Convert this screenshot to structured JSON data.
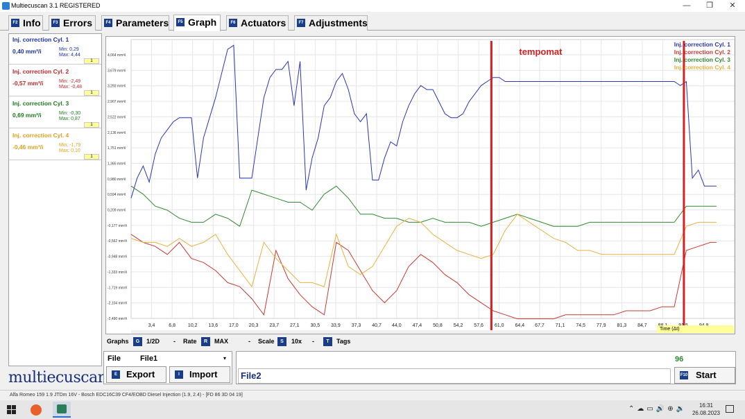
{
  "window": {
    "title": "Multiecuscan 3.1 REGISTERED",
    "minimize": "—",
    "maximize": "❐",
    "close": "✕"
  },
  "tabs": [
    {
      "key": "F2",
      "label": "Info"
    },
    {
      "key": "F3",
      "label": "Errors"
    },
    {
      "key": "F4",
      "label": "Parameters"
    },
    {
      "key": "F5",
      "label": "Graph"
    },
    {
      "key": "F6",
      "label": "Actuators"
    },
    {
      "key": "F7",
      "label": "Adjustments"
    }
  ],
  "params": [
    {
      "title": "Inj. correction Cyl. 1",
      "value": "0,40 mm³/i",
      "min": "Min: 0,29",
      "max": "Max: 4,44",
      "color": "#1c2fa8",
      "dd": "1"
    },
    {
      "title": "Inj. correction Cyl. 2",
      "value": "-0,57 mm³/i",
      "min": "Min: -2,49",
      "max": "Max: -0,48",
      "color": "#c0282a",
      "dd": "1"
    },
    {
      "title": "Inj. correction Cyl. 3",
      "value": "0,69 mm³/i",
      "min": "Min: -0,30",
      "max": "Max: 0,87",
      "color": "#1f7a1f",
      "dd": "1"
    },
    {
      "title": "Inj. correction Cyl. 4",
      "value": "-0,46 mm³/i",
      "min": "Min: -1,79",
      "max": "Max: 0,10",
      "color": "#e0a020",
      "dd": "1"
    }
  ],
  "brand": "multiecuscan",
  "colors": {
    "cyl1": "#2a35b8",
    "cyl2": "#c83a32",
    "cyl3": "#2f8a2f",
    "cyl4": "#e8b040",
    "marker": "#d42020"
  },
  "chart_data": {
    "type": "line",
    "title": "",
    "annotation": "tempomat",
    "ylim": [
      -2.49,
      4.444
    ],
    "xlim": [
      0,
      100
    ],
    "y_ticks": [
      "4,064 mm³/i",
      "3,679 mm³/i",
      "3,293 mm³/i",
      "2,907 mm³/i",
      "2,522 mm³/i",
      "2,136 mm³/i",
      "1,751 mm³/i",
      "1,365 mm³/i",
      "0,980 mm³/i",
      "0,594 mm³/i",
      "0,209 mm³/i",
      "-0,177 mm³/i",
      "-0,562 mm³/i",
      "-0,948 mm³/i",
      "-1,333 mm³/i",
      "-1,719 mm³/i",
      "-2,104 mm³/i",
      "-2,490 mm³/i"
    ],
    "y_tick_values": [
      4.064,
      3.679,
      3.293,
      2.907,
      2.522,
      2.136,
      1.751,
      1.365,
      0.98,
      0.594,
      0.209,
      -0.177,
      -0.562,
      -0.948,
      -1.333,
      -1.719,
      -2.104,
      -2.49
    ],
    "x_ticks": [
      "3,4",
      "6,8",
      "10,2",
      "13,6",
      "17,0",
      "20,3",
      "23,7",
      "27,1",
      "30,5",
      "33,9",
      "37,3",
      "40,7",
      "44,0",
      "47,4",
      "50,8",
      "54,2",
      "57,6",
      "61,0",
      "64,4",
      "67,7",
      "71,1",
      "74,5",
      "77,9",
      "81,3",
      "84,7",
      "88,1",
      "91,5",
      "94,9"
    ],
    "x_tick_values": [
      3.4,
      6.8,
      10.2,
      13.6,
      17.0,
      20.3,
      23.7,
      27.1,
      30.5,
      33.9,
      37.3,
      40.7,
      44.0,
      47.4,
      50.8,
      54.2,
      57.6,
      61.0,
      64.4,
      67.7,
      71.1,
      74.5,
      77.9,
      81.3,
      84.7,
      88.1,
      91.5,
      94.9
    ],
    "vertical_markers": [
      59.7,
      91.6
    ],
    "legend_position": "top-right",
    "x_axis_selector": "Time (Δt)",
    "series": [
      {
        "name": "Inj. correction Cyl. 1",
        "color": "#2a35b8",
        "x": [
          0,
          1,
          2,
          3,
          4,
          5,
          6,
          7,
          8,
          9,
          10,
          11,
          12,
          13,
          14,
          15,
          16,
          17,
          18,
          19,
          20,
          21,
          22,
          23,
          24,
          25,
          26,
          27,
          28,
          29,
          30,
          31,
          32,
          33,
          34,
          35,
          36,
          37,
          38,
          39,
          40,
          41,
          42,
          43,
          44,
          45,
          46,
          47,
          48,
          49,
          50,
          51,
          52,
          53,
          54,
          55,
          56,
          57,
          58,
          59,
          60,
          61,
          62,
          63,
          64,
          65,
          66,
          67,
          68,
          69,
          70,
          71,
          72,
          73,
          74,
          75,
          76,
          77,
          78,
          79,
          80,
          81,
          82,
          83,
          84,
          85,
          86,
          87,
          88,
          89,
          90,
          91,
          92,
          93,
          94,
          95,
          96,
          97
        ],
        "y": [
          0.5,
          1.0,
          1.3,
          0.9,
          1.6,
          2.0,
          2.2,
          2.4,
          2.5,
          2.5,
          2.5,
          1.0,
          2.0,
          2.5,
          3.0,
          3.6,
          4.2,
          4.3,
          1.0,
          1.0,
          1.0,
          2.0,
          3.0,
          3.5,
          3.7,
          3.7,
          3.9,
          2.8,
          3.9,
          0.7,
          1.5,
          2.0,
          2.8,
          3.0,
          3.4,
          3.6,
          3.2,
          2.6,
          2.4,
          2.6,
          0.95,
          0.95,
          1.5,
          1.9,
          1.8,
          2.4,
          2.8,
          3.1,
          3.3,
          3.2,
          3.2,
          2.9,
          2.6,
          2.5,
          2.5,
          2.6,
          2.9,
          3.1,
          3.3,
          3.4,
          3.5,
          3.5,
          3.4,
          3.4,
          3.4,
          3.4,
          3.4,
          3.4,
          3.4,
          3.4,
          3.4,
          3.4,
          3.4,
          3.4,
          3.4,
          3.4,
          3.4,
          3.4,
          3.4,
          3.4,
          3.4,
          3.4,
          3.4,
          3.4,
          3.4,
          3.4,
          3.4,
          3.4,
          3.4,
          3.4,
          3.4,
          3.3,
          3.4,
          1.0,
          1.2,
          0.8,
          0.8,
          0.8
        ]
      },
      {
        "name": "Inj. correction Cyl. 2",
        "color": "#c83a32",
        "x": [
          0,
          2,
          4,
          6,
          8,
          10,
          12,
          14,
          16,
          18,
          20,
          22,
          24,
          26,
          28,
          30,
          32,
          34,
          36,
          38,
          40,
          42,
          44,
          46,
          48,
          50,
          52,
          54,
          56,
          58,
          60,
          62,
          64,
          66,
          68,
          70,
          72,
          74,
          76,
          78,
          80,
          82,
          84,
          86,
          88,
          90,
          92,
          94,
          96,
          97
        ],
        "y": [
          -0.4,
          -0.6,
          -0.7,
          -0.9,
          -0.6,
          -1.0,
          -1.1,
          -1.3,
          -1.6,
          -1.7,
          -2.0,
          -2.4,
          -0.8,
          -1.5,
          -1.9,
          -2.2,
          -2.4,
          -0.6,
          -0.8,
          -1.3,
          -1.8,
          -2.1,
          -1.8,
          -1.2,
          -0.9,
          -1.1,
          -1.4,
          -1.6,
          -1.9,
          -2.1,
          -2.3,
          -2.4,
          -2.5,
          -2.5,
          -2.5,
          -2.5,
          -2.4,
          -2.4,
          -2.4,
          -2.4,
          -2.4,
          -2.3,
          -2.3,
          -2.3,
          -2.2,
          -2.2,
          -0.8,
          -0.7,
          -0.6,
          -0.6
        ]
      },
      {
        "name": "Inj. correction Cyl. 3",
        "color": "#2f8a2f",
        "x": [
          0,
          2,
          4,
          6,
          8,
          10,
          12,
          14,
          16,
          18,
          20,
          22,
          24,
          26,
          28,
          30,
          32,
          34,
          36,
          38,
          40,
          42,
          44,
          46,
          48,
          50,
          52,
          54,
          56,
          58,
          60,
          62,
          64,
          66,
          68,
          70,
          72,
          74,
          76,
          78,
          80,
          82,
          84,
          86,
          88,
          90,
          92,
          94,
          96,
          97
        ],
        "y": [
          0.8,
          0.6,
          0.3,
          0.2,
          0.0,
          -0.1,
          -0.1,
          0.1,
          0.0,
          -0.2,
          0.7,
          0.6,
          0.5,
          0.4,
          0.4,
          0.2,
          0.6,
          0.8,
          0.5,
          0.1,
          0.1,
          0.0,
          0.0,
          -0.1,
          -0.1,
          0.0,
          -0.1,
          -0.1,
          -0.1,
          -0.2,
          -0.1,
          0.0,
          0.1,
          0.0,
          -0.1,
          -0.2,
          -0.2,
          -0.2,
          -0.1,
          -0.1,
          -0.1,
          -0.1,
          -0.1,
          -0.1,
          -0.1,
          -0.1,
          0.3,
          0.3,
          0.3,
          0.3
        ]
      },
      {
        "name": "Inj. correction Cyl. 4",
        "color": "#e8b040",
        "x": [
          0,
          2,
          4,
          6,
          8,
          10,
          12,
          14,
          16,
          18,
          20,
          22,
          24,
          26,
          28,
          30,
          32,
          34,
          36,
          38,
          40,
          42,
          44,
          46,
          48,
          50,
          52,
          54,
          56,
          58,
          60,
          62,
          64,
          66,
          68,
          70,
          72,
          74,
          76,
          78,
          80,
          82,
          84,
          86,
          88,
          90,
          92,
          94,
          96,
          97
        ],
        "y": [
          -0.5,
          -0.6,
          -0.6,
          -0.7,
          -0.5,
          -0.7,
          -0.6,
          -0.4,
          -0.9,
          -1.3,
          -1.7,
          -0.6,
          -1.0,
          -1.3,
          -1.6,
          -1.6,
          -1.7,
          -0.4,
          -1.2,
          -1.4,
          -1.2,
          -0.7,
          -0.2,
          0.0,
          -0.1,
          -0.4,
          -0.6,
          -0.8,
          -0.9,
          -1.0,
          -0.9,
          -0.3,
          0.1,
          -0.1,
          -0.3,
          -0.5,
          -0.6,
          -0.8,
          -0.8,
          -0.9,
          -0.9,
          -0.9,
          -0.9,
          -0.9,
          -0.9,
          -0.9,
          -0.2,
          -0.1,
          -0.1,
          -0.1
        ]
      }
    ]
  },
  "controls": {
    "graphs_label": "Graphs",
    "graphs_key": "G",
    "graphs_value": "1/2D",
    "rate_label": "Rate",
    "rate_key": "R",
    "rate_value": "MAX",
    "scale_label": "Scale",
    "scale_key": "S",
    "scale_value": "10x",
    "tags_key": "T",
    "tags_label": "Tags",
    "dash": "-"
  },
  "file": {
    "label": "File",
    "value": "File1",
    "export_key": "E",
    "export_label": "Export",
    "import_key": "I",
    "import_label": "Import"
  },
  "file2": {
    "value": "File2",
    "counter": "96",
    "start_key": "F10",
    "start_label": "Start"
  },
  "status": "Alfa Romeo 159 1.9 JTDm 16V - Bosch EDC16C39 CF4/EOBD Diesel Injection (1.9, 2.4) - [FD 86 3D 04 19]",
  "taskbar": {
    "time": "16:31",
    "date": "26.08.2023"
  }
}
